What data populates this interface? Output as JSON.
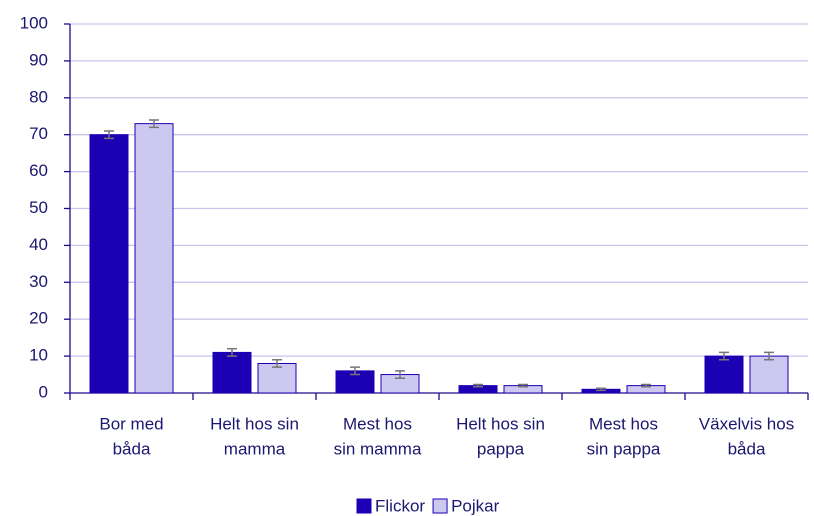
{
  "chart_data": {
    "type": "bar",
    "categories": [
      [
        "Bor med",
        "båda"
      ],
      [
        "Helt hos sin",
        "mamma"
      ],
      [
        "Mest hos",
        "sin mamma"
      ],
      [
        "Helt hos sin",
        "pappa"
      ],
      [
        "Mest hos",
        "sin pappa"
      ],
      [
        "Växelvis hos",
        "båda"
      ]
    ],
    "series": [
      {
        "name": "Flickor",
        "color": "#1c00b4",
        "values": [
          70,
          11,
          6,
          2,
          1,
          10
        ],
        "errors": [
          1,
          1,
          1,
          0.3,
          0.3,
          1
        ]
      },
      {
        "name": "Pojkar",
        "color": "#ccc8f0",
        "values": [
          73,
          8,
          5,
          2,
          2,
          10
        ],
        "errors": [
          1,
          1,
          1,
          0.3,
          0.3,
          1
        ]
      }
    ],
    "ylim": [
      0,
      100
    ],
    "yticks": [
      0,
      10,
      20,
      30,
      40,
      50,
      60,
      70,
      80,
      90,
      100
    ],
    "grid": true,
    "legend": "bottom"
  }
}
